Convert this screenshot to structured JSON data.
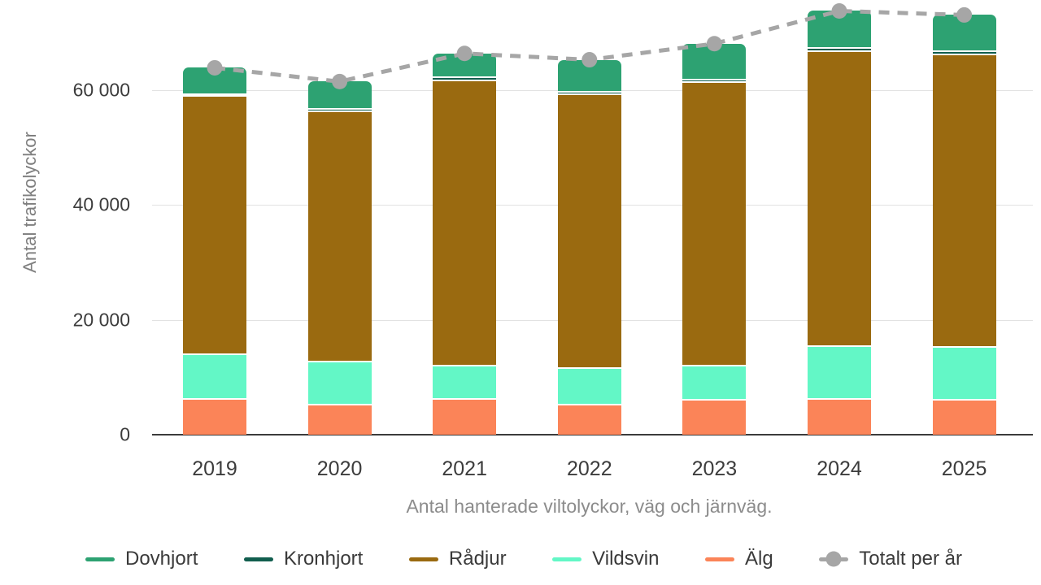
{
  "chart_data": {
    "type": "bar",
    "subtype": "stacked-bars-with-total-line",
    "title": "",
    "categories": [
      "2019",
      "2020",
      "2021",
      "2022",
      "2023",
      "2024",
      "2025"
    ],
    "series": [
      {
        "name": "Älg",
        "color": "#fb8458",
        "values": [
          6300,
          5400,
          6400,
          5400,
          6200,
          6300,
          6200
        ]
      },
      {
        "name": "Vildsvin",
        "color": "#63f7c6",
        "values": [
          7800,
          7500,
          5700,
          6400,
          5900,
          9300,
          9200
        ]
      },
      {
        "name": "Rådjur",
        "color": "#9a6a10",
        "values": [
          45000,
          43500,
          49700,
          47600,
          49500,
          51400,
          51000
        ]
      },
      {
        "name": "Kronhjort",
        "color": "#115e4e",
        "values": [
          400,
          500,
          600,
          400,
          400,
          500,
          500
        ]
      },
      {
        "name": "Dovhjort",
        "color": "#2da272",
        "values": [
          4400,
          4600,
          4000,
          5500,
          6100,
          6300,
          6200
        ]
      }
    ],
    "stack_order_bottom_to_top": [
      "Älg",
      "Vildsvin",
      "Rådjur",
      "Kronhjort",
      "Dovhjort"
    ],
    "line_series": {
      "name": "Totalt per år",
      "color": "#a6a6a6",
      "style": "dashed-with-markers",
      "values": [
        63900,
        61500,
        66400,
        65300,
        68100,
        73800,
        73100
      ]
    },
    "xlabel": "Antal hanterade viltolyckor, väg och järnväg.",
    "ylabel": "Antal trafikolyckor",
    "yticks": [
      0,
      20000,
      40000,
      60000
    ],
    "ytick_labels": [
      "0",
      "20 000",
      "40 000",
      "60 000"
    ],
    "ylim": [
      0,
      75700
    ],
    "grid": true,
    "legend_position": "bottom",
    "legend": [
      {
        "label": "Dovhjort",
        "color": "#2da272",
        "marker": "dash"
      },
      {
        "label": "Kronhjort",
        "color": "#115e4e",
        "marker": "dash"
      },
      {
        "label": "Rådjur",
        "color": "#9a6a10",
        "marker": "dash"
      },
      {
        "label": "Vildsvin",
        "color": "#63f7c6",
        "marker": "dash"
      },
      {
        "label": "Älg",
        "color": "#fb8458",
        "marker": "dash"
      },
      {
        "label": "Totalt per år",
        "color": "#a6a6a6",
        "marker": "dash-circle"
      }
    ],
    "colors": {
      "grid": "#e2e2e2",
      "axis_line": "#3b3b3b",
      "tick_text": "#3c3c3c",
      "axis_title_text": "#7f7f7f",
      "caption_text": "#8c8c8c",
      "bar_border": "#ffffff"
    }
  }
}
